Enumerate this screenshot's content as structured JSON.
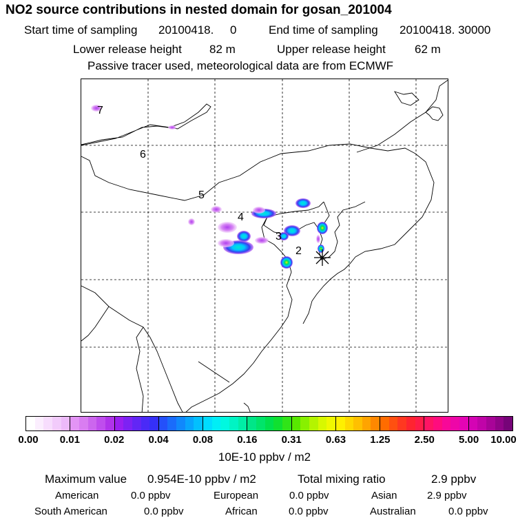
{
  "header": {
    "title": "NO2 source contributions in nested domain for gosan_201004",
    "start_label": "Start time of sampling",
    "start_value": "20100418.     0",
    "end_label": "End time of sampling",
    "end_value": "20100418. 30000",
    "lower_label": "Lower release height",
    "lower_value": "82 m",
    "upper_label": "Upper release height",
    "upper_value": "62 m",
    "note": "Passive tracer used, meteorological data are from ECMWF"
  },
  "map": {
    "grid_labels": [
      "7",
      "6",
      "5",
      "4",
      "3",
      "2"
    ],
    "receptor_marker": "receptor-star-icon",
    "plume_colors": [
      "#e8c8f8",
      "#c060f0",
      "#3a3af0",
      "#00c8ff",
      "#00e060",
      "#f0f000"
    ]
  },
  "colorbar": {
    "ticks": [
      "0.00",
      "0.01",
      "0.02",
      "0.04",
      "0.08",
      "0.16",
      "0.31",
      "0.63",
      "1.25",
      "2.50",
      "5.00",
      "10.00"
    ],
    "unit": "10E-10 ppbv / m2",
    "segments": [
      [
        "#ffffff",
        "#fbeefe",
        "#f7ddfd",
        "#f2cbfb",
        "#edbaf9"
      ],
      [
        "#e394f5",
        "#d97df1",
        "#cc66ee",
        "#bf4ded",
        "#b033ea"
      ],
      [
        "#9a1ff0",
        "#7d22f3",
        "#6226f5",
        "#4a2af7",
        "#3530f8"
      ],
      [
        "#2450fa",
        "#1a6cfb",
        "#1088fc",
        "#08a4fd",
        "#02c0fe"
      ],
      [
        "#00dcff",
        "#00eef6",
        "#00f8e0",
        "#00f4c4",
        "#00eea6"
      ],
      [
        "#00e688",
        "#00e46a",
        "#00e04c",
        "#10e030",
        "#30e418"
      ],
      [
        "#58e800",
        "#88f000",
        "#b4f400",
        "#d8f800",
        "#f0f800"
      ],
      [
        "#fff000",
        "#ffd800",
        "#ffc000",
        "#ffa400",
        "#ff8800"
      ],
      [
        "#ff6c00",
        "#ff5010",
        "#ff3820",
        "#ff2430",
        "#ff1c48"
      ],
      [
        "#ff1464",
        "#ff0c7e",
        "#f80898",
        "#ee06a8",
        "#e404b4"
      ],
      [
        "#d404b4",
        "#c004a8",
        "#a80498",
        "#900488",
        "#760478"
      ]
    ]
  },
  "stats": {
    "max_label": "Maximum value",
    "max_value": "0.954E-10 ppbv / m2",
    "total_label": "Total mixing ratio",
    "total_value": "2.9 ppbv"
  },
  "regions": [
    {
      "name": "American",
      "value": "0.0 ppbv"
    },
    {
      "name": "European",
      "value": "0.0 ppbv"
    },
    {
      "name": "Asian",
      "value": "2.9 ppbv"
    },
    {
      "name": "South American",
      "value": "0.0 ppbv"
    },
    {
      "name": "African",
      "value": "0.0 ppbv"
    },
    {
      "name": "Australian",
      "value": "0.0 ppbv"
    }
  ]
}
